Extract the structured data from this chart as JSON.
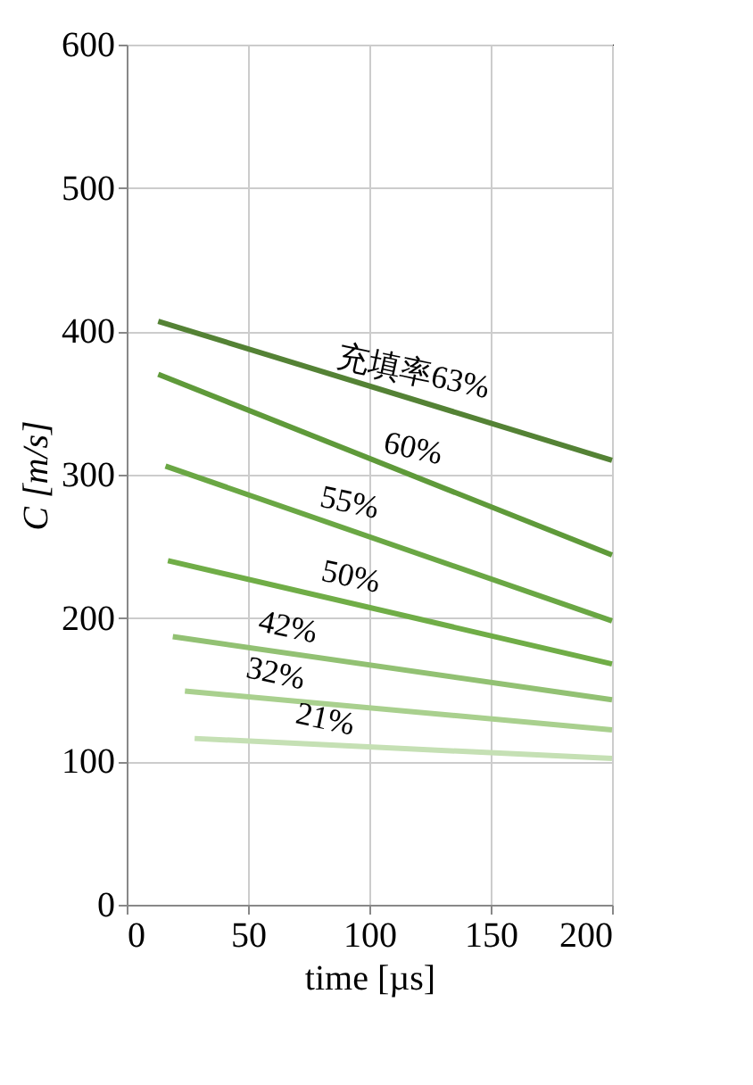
{
  "chart_data": {
    "type": "line",
    "xlabel": "time [µs]",
    "ylabel": "C [m/s]",
    "xlim": [
      0,
      200
    ],
    "xticks": [
      0,
      50,
      100,
      150,
      200
    ],
    "ylim": [
      0,
      600
    ],
    "yticks": [
      0,
      100,
      200,
      300,
      400,
      500,
      600
    ],
    "grid": true,
    "marker": "none",
    "line_style": "solid",
    "series": [
      {
        "color": "#548235",
        "x": [
          13,
          200
        ],
        "values": [
          407,
          310
        ]
      },
      {
        "color": "#5f9a3a",
        "x": [
          13,
          200
        ],
        "values": [
          370,
          244
        ]
      },
      {
        "color": "#6aa744",
        "x": [
          16,
          200
        ],
        "values": [
          306,
          198
        ]
      },
      {
        "color": "#70ad47",
        "x": [
          17,
          200
        ],
        "values": [
          240,
          168
        ]
      },
      {
        "color": "#92c173",
        "x": [
          19,
          200
        ],
        "values": [
          187,
          143
        ]
      },
      {
        "color": "#a9d08e",
        "x": [
          24,
          200
        ],
        "values": [
          149,
          122
        ]
      },
      {
        "color": "#c5e0b4",
        "x": [
          28,
          200
        ],
        "values": [
          116,
          102
        ]
      }
    ],
    "annotations": [
      "充填率63%",
      "60%",
      "55%",
      "50%",
      "42%",
      "32%",
      "21%"
    ]
  }
}
